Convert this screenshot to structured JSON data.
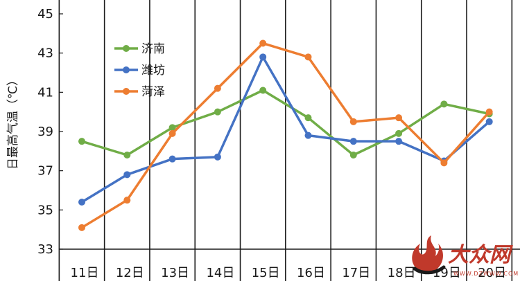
{
  "chart_data": {
    "type": "line",
    "title": "",
    "xlabel": "",
    "ylabel": "日最高气温（℃）",
    "categories": [
      "11日",
      "12日",
      "13日",
      "14日",
      "15日",
      "16日",
      "17日",
      "18日",
      "19日",
      "20日"
    ],
    "ylim": [
      33,
      45
    ],
    "yticks": [
      33,
      35,
      37,
      39,
      41,
      43,
      45
    ],
    "grid": "vertical lines between categories",
    "legend_position": "top-left",
    "series": [
      {
        "name": "济南",
        "color": "#70ad47",
        "values": [
          38.5,
          37.8,
          39.2,
          40.0,
          41.1,
          39.7,
          37.8,
          38.9,
          40.4,
          39.9
        ]
      },
      {
        "name": "潍坊",
        "color": "#4472c4",
        "values": [
          35.4,
          36.8,
          37.6,
          37.7,
          42.8,
          38.8,
          38.5,
          38.5,
          37.5,
          39.5
        ]
      },
      {
        "name": "菏泽",
        "color": "#ed7d31",
        "values": [
          34.1,
          35.5,
          38.9,
          41.2,
          43.5,
          42.8,
          39.5,
          39.7,
          37.4,
          40.0
        ]
      }
    ]
  },
  "watermark": {
    "logo_text": "大众网",
    "url_text": "WWW.DZWWW.COM",
    "colors": {
      "red": "#c0392b",
      "dark": "#1a1a1a"
    }
  }
}
